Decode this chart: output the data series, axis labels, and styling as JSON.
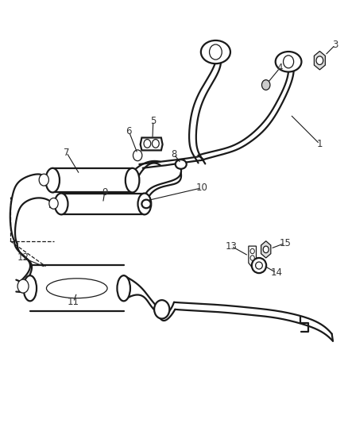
{
  "bg_color": "#ffffff",
  "line_color": "#1a1a1a",
  "label_color": "#333333",
  "lw": 1.6,
  "lw_thin": 0.9,
  "font_size": 8.5
}
